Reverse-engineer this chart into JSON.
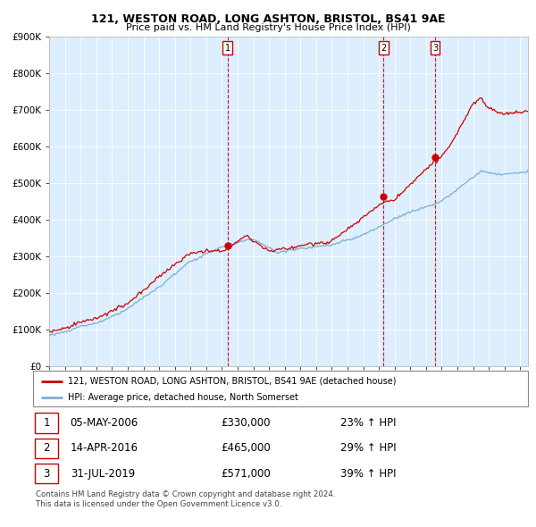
{
  "title": "121, WESTON ROAD, LONG ASHTON, BRISTOL, BS41 9AE",
  "subtitle": "Price paid vs. HM Land Registry's House Price Index (HPI)",
  "legend_property": "121, WESTON ROAD, LONG ASHTON, BRISTOL, BS41 9AE (detached house)",
  "legend_hpi": "HPI: Average price, detached house, North Somerset",
  "sales": [
    {
      "num": 1,
      "date": "05-MAY-2006",
      "price": 330000,
      "hpi_pct": "23%",
      "direction": "↑"
    },
    {
      "num": 2,
      "date": "14-APR-2016",
      "price": 465000,
      "hpi_pct": "29%",
      "direction": "↑"
    },
    {
      "num": 3,
      "date": "31-JUL-2019",
      "price": 571000,
      "hpi_pct": "39%",
      "direction": "↑"
    }
  ],
  "footer": "Contains HM Land Registry data © Crown copyright and database right 2024.\nThis data is licensed under the Open Government Licence v3.0.",
  "property_color": "#cc0000",
  "hpi_color": "#7bafd4",
  "bg_color": "#ddeeff",
  "vline_color": "#cc0000",
  "ylim": [
    0,
    900000
  ],
  "yticks": [
    0,
    100000,
    200000,
    300000,
    400000,
    500000,
    600000,
    700000,
    800000,
    900000
  ],
  "xlim_start": 1995.0,
  "xlim_end": 2025.5,
  "sale_years": [
    2006.37,
    2016.29,
    2019.58
  ],
  "sale_prices": [
    330000,
    465000,
    571000
  ]
}
